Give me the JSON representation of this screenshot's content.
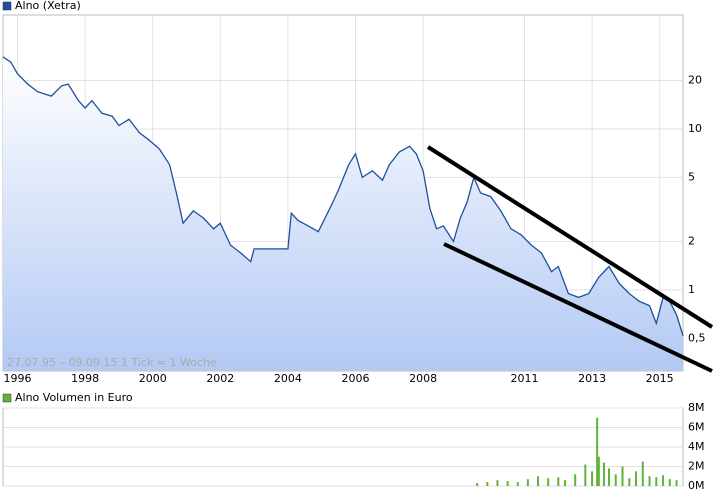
{
  "chart_data": [
    {
      "type": "line",
      "log_scale": true,
      "grid": true,
      "legend": "top-left",
      "annotation": "27.07.95 – 09.09.15   1 Tick = 1 Woche",
      "x": [
        1995.57,
        1995.8,
        1996.0,
        1996.3,
        1996.6,
        1997.0,
        1997.3,
        1997.5,
        1997.8,
        1998.0,
        1998.2,
        1998.5,
        1998.8,
        1999.0,
        1999.3,
        1999.6,
        1999.9,
        2000.2,
        2000.5,
        2000.7,
        2000.9,
        2001.2,
        2001.5,
        2001.8,
        2002.0,
        2002.3,
        2002.6,
        2002.9,
        2003.0,
        2003.5,
        2004.0,
        2004.1,
        2004.3,
        2004.6,
        2004.9,
        2005.3,
        2005.5,
        2005.8,
        2006.0,
        2006.2,
        2006.5,
        2006.8,
        2007.0,
        2007.3,
        2007.6,
        2007.8,
        2008.0,
        2008.2,
        2008.4,
        2008.6,
        2008.9,
        2009.1,
        2009.3,
        2009.5,
        2009.7,
        2010.0,
        2010.3,
        2010.6,
        2010.9,
        2011.2,
        2011.5,
        2011.8,
        2012.0,
        2012.3,
        2012.6,
        2012.9,
        2013.2,
        2013.5,
        2013.8,
        2014.1,
        2014.4,
        2014.7,
        2014.9,
        2015.1,
        2015.3,
        2015.5,
        2015.69
      ],
      "series": [
        {
          "name": "Alno (Xetra)",
          "color": "#1f4fa0",
          "values": [
            28,
            26,
            22,
            19,
            17,
            16,
            18.5,
            19,
            15,
            13.5,
            15,
            12.5,
            12,
            10.5,
            11.5,
            9.5,
            8.5,
            7.5,
            6,
            4,
            2.6,
            3.1,
            2.8,
            2.4,
            2.6,
            1.9,
            1.7,
            1.5,
            1.8,
            1.8,
            1.8,
            3.0,
            2.7,
            2.5,
            2.3,
            3.4,
            4.2,
            6.0,
            7.0,
            5.0,
            5.5,
            4.8,
            6.0,
            7.2,
            7.8,
            7.0,
            5.5,
            3.2,
            2.4,
            2.5,
            2.0,
            2.8,
            3.5,
            5.0,
            4.0,
            3.8,
            3.1,
            2.4,
            2.2,
            1.9,
            1.7,
            1.3,
            1.4,
            0.95,
            0.9,
            0.95,
            1.2,
            1.4,
            1.1,
            0.95,
            0.85,
            0.8,
            0.62,
            0.9,
            0.85,
            0.7,
            0.52
          ]
        }
      ],
      "xlim": [
        1995.57,
        2015.69
      ],
      "xticks": [
        1996,
        1998,
        2000,
        2002,
        2004,
        2006,
        2008,
        2011,
        2013,
        2015
      ],
      "ylim": [
        0.314,
        51
      ],
      "yticks": [
        {
          "value": 0.5,
          "label": "0,5"
        },
        1,
        2,
        5,
        10,
        20
      ]
    },
    {
      "type": "bar",
      "grid": true,
      "legend": "top-left",
      "x": [
        2009.6,
        2009.9,
        2010.2,
        2010.5,
        2010.8,
        2011.1,
        2011.4,
        2011.7,
        2012.0,
        2012.2,
        2012.5,
        2012.8,
        2013.0,
        2013.15,
        2013.2,
        2013.35,
        2013.5,
        2013.7,
        2013.9,
        2014.1,
        2014.3,
        2014.5,
        2014.7,
        2014.9,
        2015.1,
        2015.3,
        2015.5
      ],
      "series": [
        {
          "name": "Alno Volumen in Euro",
          "color": "#5fb33a",
          "values": [
            300000,
            400000,
            600000,
            500000,
            400000,
            700000,
            1000000,
            800000,
            900000,
            600000,
            1200000,
            2200000,
            1500000,
            7000000,
            3000000,
            2400000,
            1800000,
            1200000,
            2000000,
            800000,
            1500000,
            2500000,
            1000000,
            900000,
            1100000,
            700000,
            600000
          ]
        }
      ],
      "xlim": [
        1995.57,
        2015.69
      ],
      "ylim": [
        0,
        8000000
      ],
      "yticks": [
        {
          "value": 0,
          "label": "0M"
        },
        {
          "value": 2000000,
          "label": "2M"
        },
        {
          "value": 4000000,
          "label": "4M"
        },
        {
          "value": 6000000,
          "label": "6M"
        },
        {
          "value": 8000000,
          "label": "8M"
        }
      ]
    }
  ]
}
